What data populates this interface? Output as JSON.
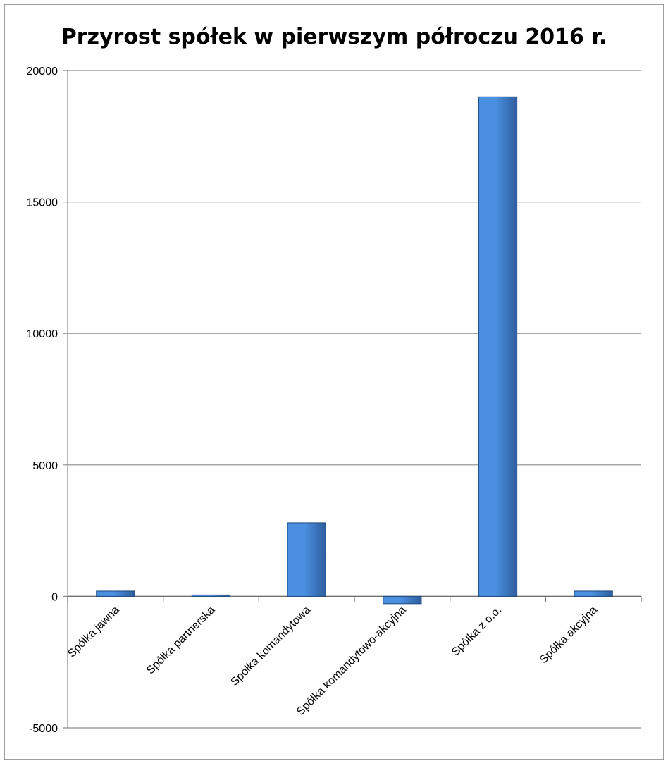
{
  "chart_data": {
    "type": "bar",
    "title": "Przyrost spółek w pierwszym półroczu 2016 r.",
    "xlabel": "",
    "ylabel": "",
    "categories": [
      "Spółka jawna",
      "Spółka partnerska",
      "Spółka komandytowa",
      "Spółka komandytowo-akcyjna",
      "Spółka z o.o.",
      "Spółka akcyjna"
    ],
    "values": [
      200,
      20,
      2800,
      -280,
      19000,
      200
    ],
    "ylim": [
      -5000,
      20000
    ],
    "yticks": [
      20000,
      15000,
      10000,
      5000,
      0,
      -5000
    ],
    "ytick_labels": [
      "20000",
      "15000",
      "10000",
      "5000",
      "0",
      "-5000"
    ],
    "grid": true,
    "legend": "none",
    "colors": {
      "bar_light": "#4a8fe0",
      "bar_dark": "#2e5e9e",
      "bar_edge": "#1f4a80",
      "grid": "#8c8c8c",
      "border": "#7f7f7f"
    }
  }
}
